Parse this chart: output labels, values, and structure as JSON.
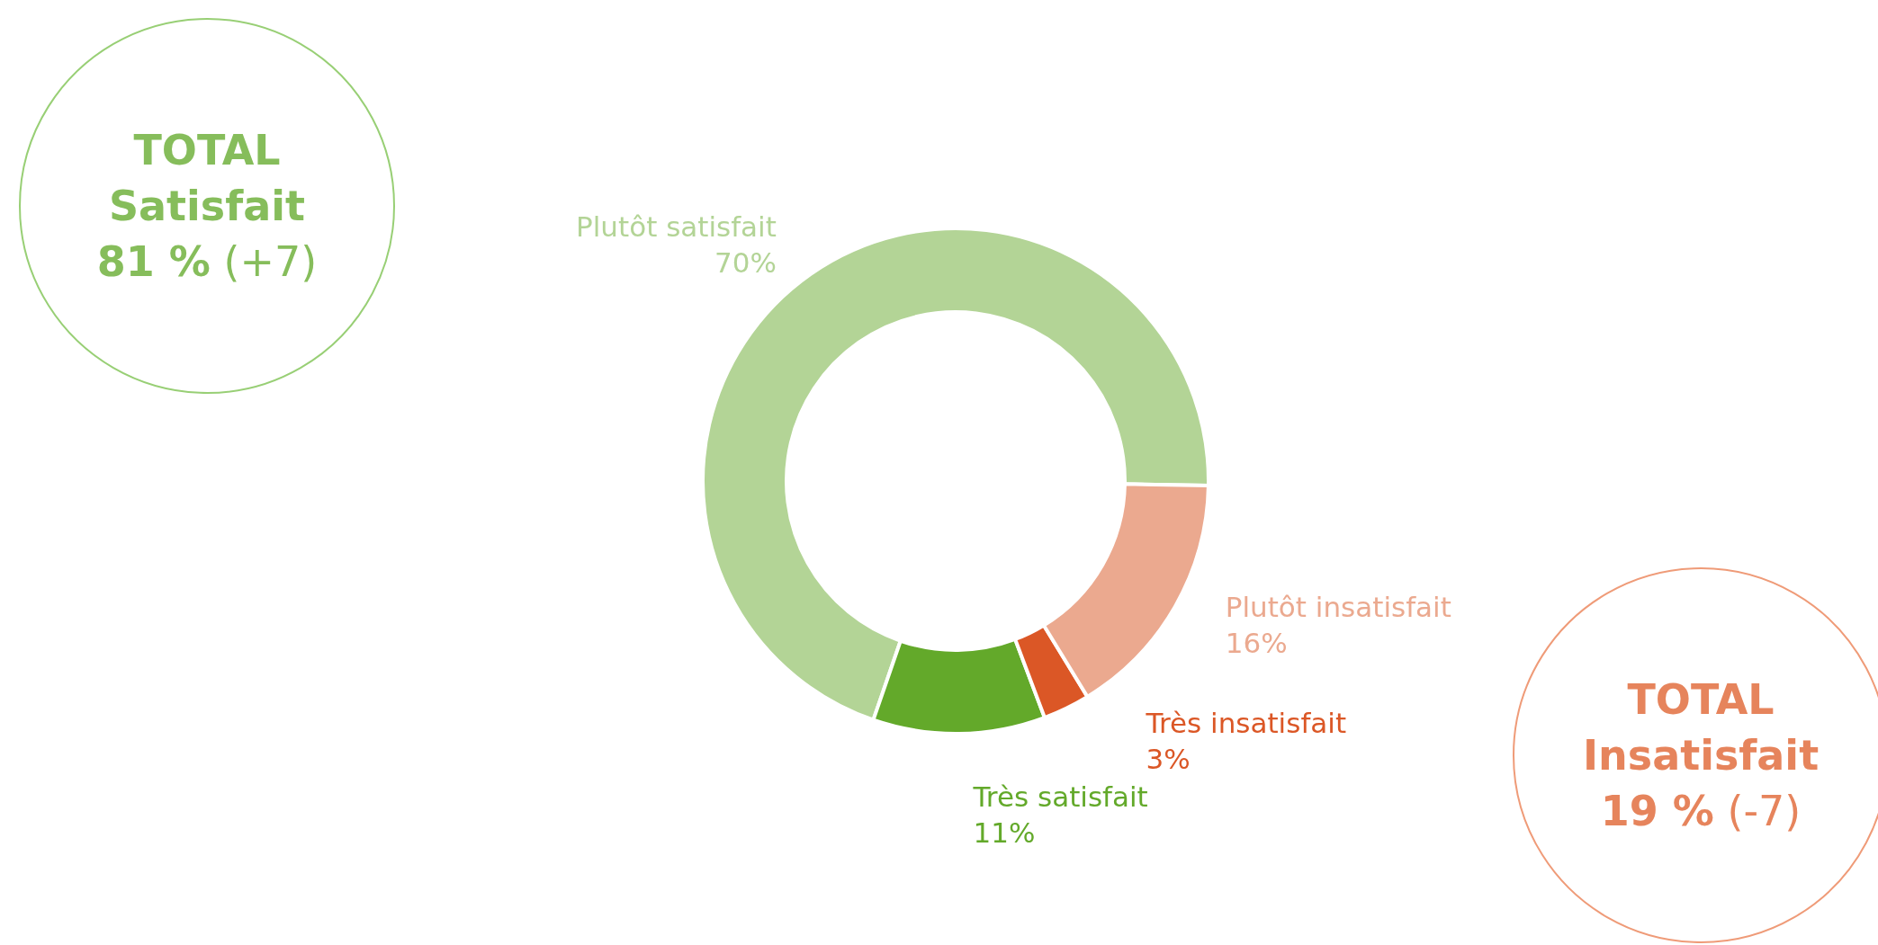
{
  "chart_data": {
    "type": "donut",
    "categories": [
      "Plutôt satisfait",
      "Très satisfait",
      "Très insatisfait",
      "Plutôt insatisfait"
    ],
    "values": [
      70,
      11,
      3,
      16
    ],
    "colors": [
      "#b3d496",
      "#63a92a",
      "#db5726",
      "#eba98f"
    ],
    "value_labels": [
      "70%",
      "11%",
      "3%",
      "16%"
    ],
    "annotations": [
      "TOTAL\nSatisfait\n81 % (+7)",
      "TOTAL\nInsatisfait\n19 % (-7)"
    ],
    "legend": false
  }
}
